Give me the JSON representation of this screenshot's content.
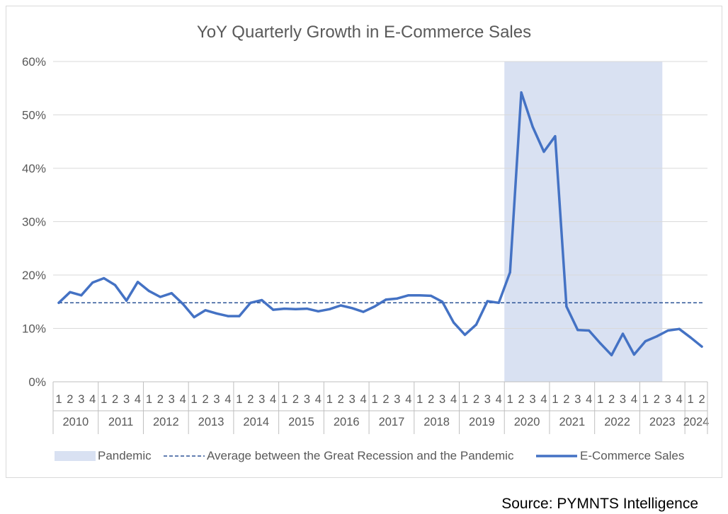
{
  "source": "Source: PYMNTS Intelligence",
  "colors": {
    "line": "#4472c4",
    "pandemic": "#d9e1f2",
    "average": "#2e5597",
    "grid": "#d9d9d9",
    "text": "#595959"
  },
  "chart_data": {
    "type": "line",
    "title": "YoY Quarterly Growth in E-Commerce Sales",
    "ylim": [
      0,
      60
    ],
    "yticks": [
      "0%",
      "10%",
      "20%",
      "30%",
      "40%",
      "50%",
      "60%"
    ],
    "ytick_values": [
      0,
      10,
      20,
      30,
      40,
      50,
      60
    ],
    "grid": true,
    "legend_position": "bottom",
    "years": [
      "2010",
      "2011",
      "2012",
      "2013",
      "2014",
      "2015",
      "2016",
      "2017",
      "2018",
      "2019",
      "2020",
      "2021",
      "2022",
      "2023",
      "2024"
    ],
    "quarters": [
      "1",
      "2",
      "3",
      "4",
      "1",
      "2",
      "3",
      "4",
      "1",
      "2",
      "3",
      "4",
      "1",
      "2",
      "3",
      "4",
      "1",
      "2",
      "3",
      "4",
      "1",
      "2",
      "3",
      "4",
      "1",
      "2",
      "3",
      "4",
      "1",
      "2",
      "3",
      "4",
      "1",
      "2",
      "3",
      "4",
      "1",
      "2",
      "3",
      "4",
      "1",
      "2",
      "3",
      "4",
      "1",
      "2",
      "3",
      "4",
      "1",
      "2",
      "3",
      "4",
      "1",
      "2",
      "3",
      "4",
      "1",
      "2"
    ],
    "pandemic": {
      "name": "Pandemic",
      "start_index": 40,
      "end_index": 53
    },
    "average": {
      "name": "Average between the Great Recession and the Pandemic",
      "value": 14.8
    },
    "series": [
      {
        "name": "E-Commerce Sales",
        "values": [
          14.8,
          16.8,
          16.2,
          18.6,
          19.4,
          18.1,
          15.2,
          18.7,
          17.0,
          15.9,
          16.6,
          14.6,
          12.1,
          13.4,
          12.8,
          12.3,
          12.3,
          14.8,
          15.3,
          13.5,
          13.7,
          13.6,
          13.7,
          13.2,
          13.6,
          14.3,
          13.8,
          13.1,
          14.1,
          15.4,
          15.6,
          16.2,
          16.2,
          16.1,
          15.0,
          11.1,
          8.8,
          10.7,
          15.1,
          14.8,
          20.5,
          54.2,
          47.8,
          43.1,
          46.0,
          14.1,
          9.7,
          9.6,
          7.2,
          5.0,
          9.0,
          5.1,
          7.6,
          8.5,
          9.6,
          9.9,
          8.3,
          6.6
        ]
      }
    ]
  }
}
